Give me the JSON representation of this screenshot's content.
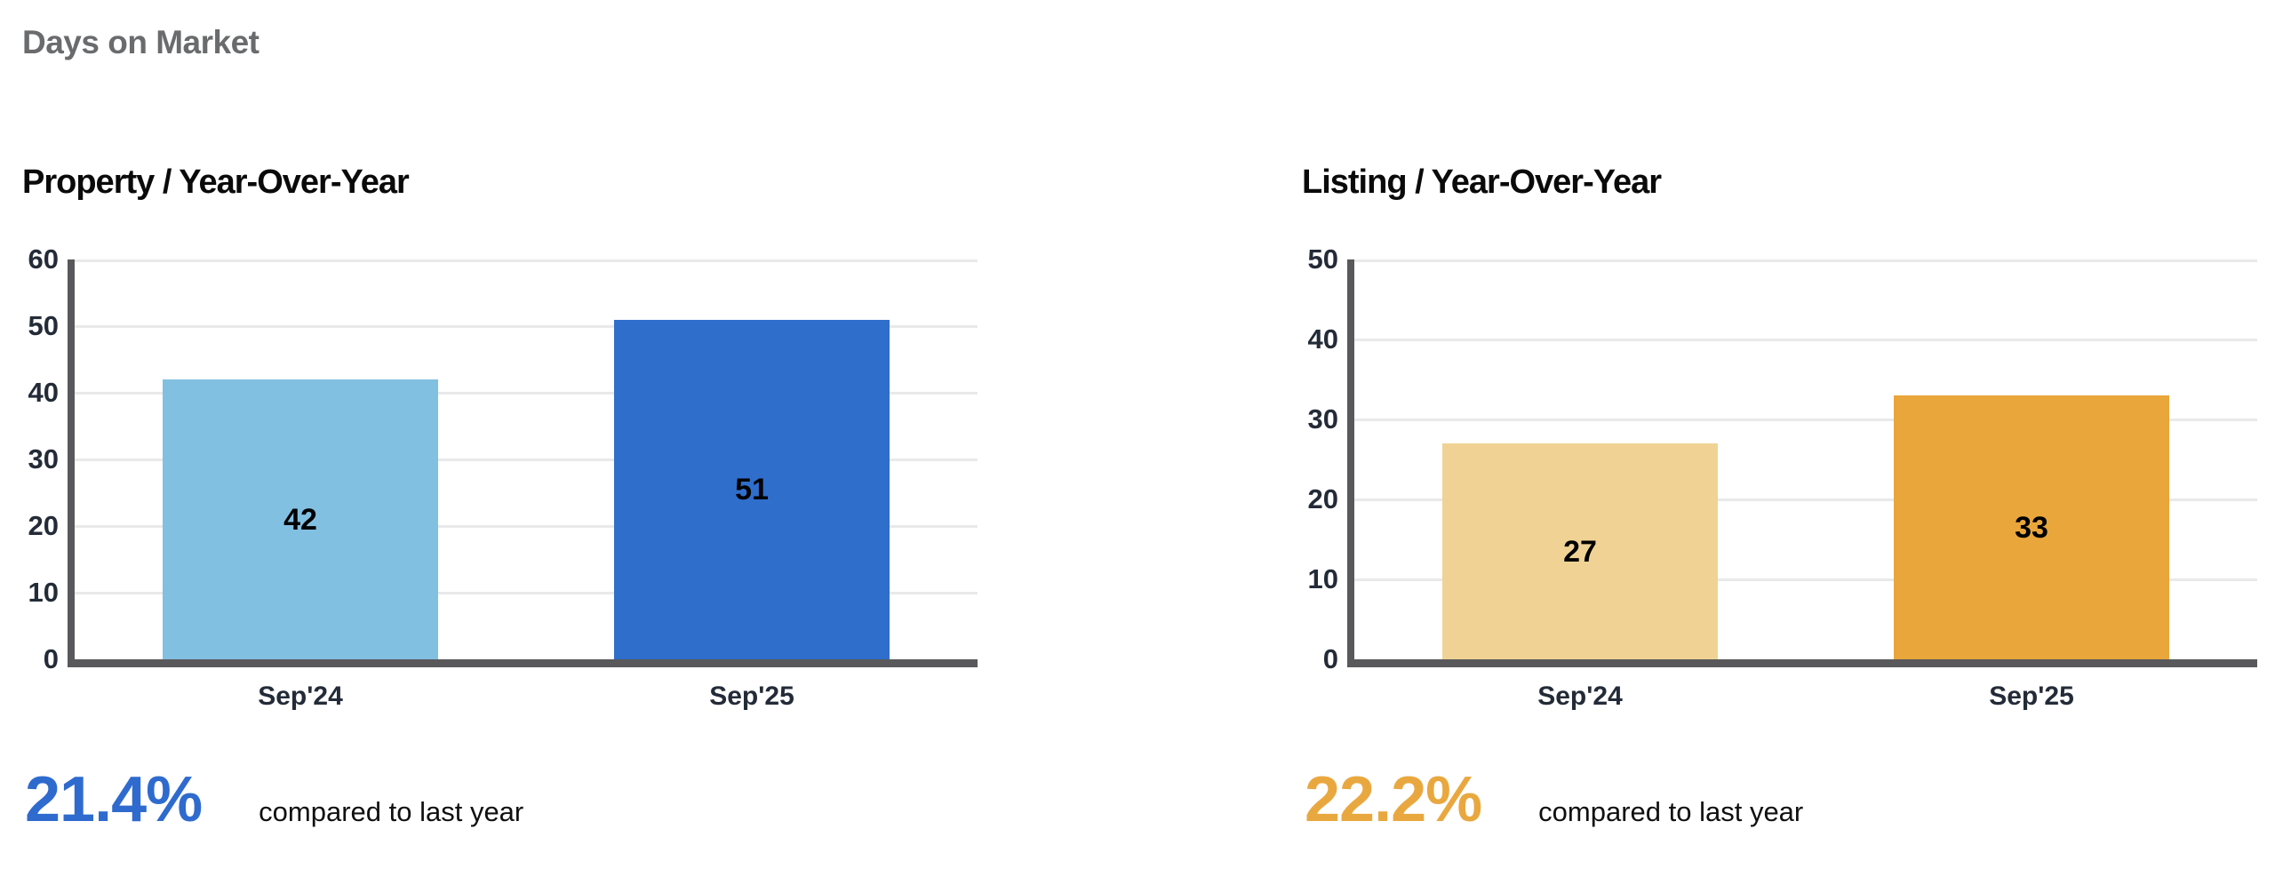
{
  "page": {
    "title": "Days on Market"
  },
  "theme": {
    "header_color": "#6A6B6D",
    "title_color": "#0A0A0A",
    "axis_color": "#59595B",
    "grid_color": "#E9E9E9",
    "tick_label_color": "#242B38",
    "bar_label_color": "#000000"
  },
  "chart_data": [
    {
      "type": "bar",
      "title": "Property / Year-Over-Year",
      "categories": [
        "Sep'24",
        "Sep'25"
      ],
      "values": [
        42,
        51
      ],
      "bar_colors": [
        "#82C0E2",
        "#2F6ECB"
      ],
      "ylim": [
        0,
        60
      ],
      "yticks": [
        0,
        10,
        20,
        30,
        40,
        50,
        60
      ],
      "xlabel": "",
      "ylabel": "",
      "grid": true,
      "legend": "none",
      "value_labels": "centered-inside-bars",
      "footer": {
        "delta": "21.4%",
        "delta_color": "#2F6BCE",
        "caption": "compared to last year"
      }
    },
    {
      "type": "bar",
      "title": "Listing / Year-Over-Year",
      "categories": [
        "Sep'24",
        "Sep'25"
      ],
      "values": [
        27,
        33
      ],
      "bar_colors": [
        "#F0D394",
        "#E9A63B"
      ],
      "ylim": [
        0,
        50
      ],
      "yticks": [
        0,
        10,
        20,
        30,
        40,
        50
      ],
      "xlabel": "",
      "ylabel": "",
      "grid": true,
      "legend": "none",
      "value_labels": "centered-inside-bars",
      "footer": {
        "delta": "22.2%",
        "delta_color": "#E9A83F",
        "caption": "compared to last year"
      }
    }
  ]
}
